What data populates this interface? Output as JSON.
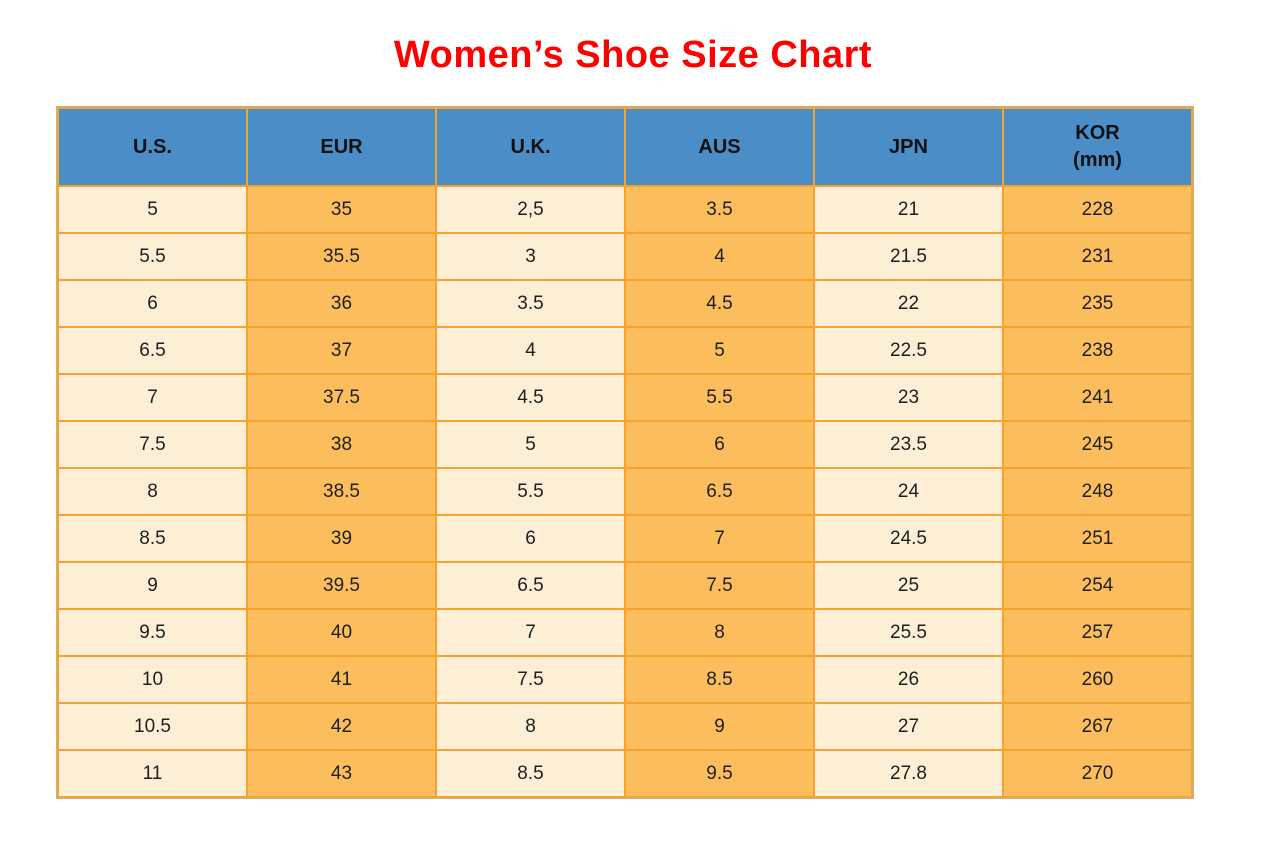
{
  "page": {
    "title": "Women’s Shoe Size Chart"
  },
  "colors": {
    "title_red": "#fe0000",
    "header_blue": "#4a8dc7",
    "cell_light": "#fdeed6",
    "cell_dark": "#fcbd5d",
    "border_orange": "#f4a42c",
    "header_text": "#111111",
    "cell_text": "#1f1f1f"
  },
  "chart_data": {
    "type": "table",
    "title": "Women’s Shoe Size Chart",
    "columns": [
      "U.S.",
      "EUR",
      "U.K.",
      "AUS",
      "JPN",
      "KOR (mm)"
    ],
    "column_header_lines": [
      [
        "U.S."
      ],
      [
        "EUR"
      ],
      [
        "U.K."
      ],
      [
        "AUS"
      ],
      [
        "JPN"
      ],
      [
        "KOR",
        "(mm)"
      ]
    ],
    "column_shading": [
      "light",
      "dark",
      "light",
      "dark",
      "light",
      "dark"
    ],
    "rows": [
      [
        "5",
        "35",
        "2,5",
        "3.5",
        "21",
        "228"
      ],
      [
        "5.5",
        "35.5",
        "3",
        "4",
        "21.5",
        "231"
      ],
      [
        "6",
        "36",
        "3.5",
        "4.5",
        "22",
        "235"
      ],
      [
        "6.5",
        "37",
        "4",
        "5",
        "22.5",
        "238"
      ],
      [
        "7",
        "37.5",
        "4.5",
        "5.5",
        "23",
        "241"
      ],
      [
        "7.5",
        "38",
        "5",
        "6",
        "23.5",
        "245"
      ],
      [
        "8",
        "38.5",
        "5.5",
        "6.5",
        "24",
        "248"
      ],
      [
        "8.5",
        "39",
        "6",
        "7",
        "24.5",
        "251"
      ],
      [
        "9",
        "39.5",
        "6.5",
        "7.5",
        "25",
        "254"
      ],
      [
        "9.5",
        "40",
        "7",
        "8",
        "25.5",
        "257"
      ],
      [
        "10",
        "41",
        "7.5",
        "8.5",
        "26",
        "260"
      ],
      [
        "10.5",
        "42",
        "8",
        "9",
        "27",
        "267"
      ],
      [
        "11",
        "43",
        "8.5",
        "9.5",
        "27.8",
        "270"
      ]
    ],
    "layout": {
      "header_position": "top",
      "grid": true,
      "title_position": "top-center"
    }
  }
}
